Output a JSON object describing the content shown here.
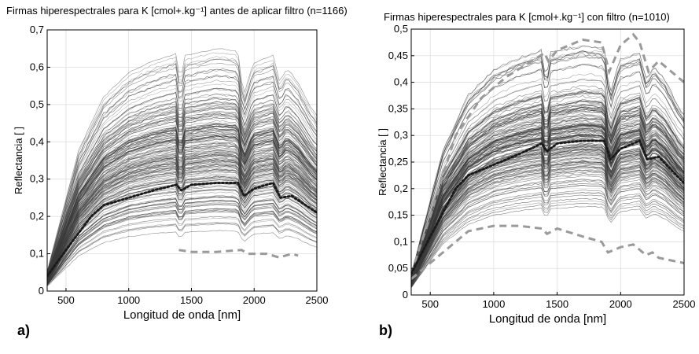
{
  "chart_data": [
    {
      "id": "a",
      "type": "line",
      "title": "Firmas hiperespectrales para K [cmol+.kg⁻¹] antes de aplicar filtro (n=1166)",
      "panel_label": "a)",
      "xlabel": "Longitud de onda [nm]",
      "ylabel": "Reflectancia [ ]",
      "xlim": [
        350,
        2500
      ],
      "ylim": [
        0,
        0.7
      ],
      "xticks": [
        500,
        1000,
        1500,
        2000,
        2500
      ],
      "yticks": [
        0,
        0.1,
        0.2,
        0.3,
        0.4,
        0.5,
        0.6,
        0.7
      ],
      "ytick_labels": [
        "0",
        "0,1",
        "0,2",
        "0,3",
        "0,4",
        "0,5",
        "0,6",
        "0,7"
      ],
      "grid": true,
      "n_spectra": 1166,
      "spectra_color": "#3a3a3a",
      "mean_color": "#1a1a1a",
      "bound_color": "#9a9a9a",
      "spectra_range": {
        "min_plateau": 0.05,
        "max_plateau": 0.66
      },
      "mean_spectrum": {
        "x": [
          350,
          500,
          700,
          800,
          1000,
          1200,
          1380,
          1420,
          1500,
          1700,
          1870,
          1920,
          2000,
          2150,
          2210,
          2300,
          2500
        ],
        "y": [
          0.04,
          0.11,
          0.2,
          0.23,
          0.25,
          0.27,
          0.285,
          0.27,
          0.285,
          0.29,
          0.29,
          0.255,
          0.275,
          0.29,
          0.25,
          0.255,
          0.21
        ]
      },
      "lower_bound": {
        "x": [
          1400,
          1500,
          1700,
          1900,
          1950,
          2100,
          2200,
          2300,
          2350
        ],
        "y": [
          0.11,
          0.105,
          0.105,
          0.11,
          0.1,
          0.1,
          0.09,
          0.1,
          0.095
        ]
      }
    },
    {
      "id": "b",
      "type": "line",
      "title": "Firmas hiperespectrales para K [cmol+.kg⁻¹] con filtro (n=1010)",
      "panel_label": "b)",
      "xlabel": "Longitud de onda [nm]",
      "ylabel": "Reflectancia [ ]",
      "xlim": [
        350,
        2500
      ],
      "ylim": [
        0,
        0.5
      ],
      "xticks": [
        500,
        1000,
        1500,
        2000,
        2500
      ],
      "yticks": [
        0,
        0.05,
        0.1,
        0.15,
        0.2,
        0.25,
        0.3,
        0.35,
        0.4,
        0.45,
        0.5
      ],
      "ytick_labels": [
        "0",
        "0,05",
        "0,1",
        "0,15",
        "0,2",
        "0,25",
        "0,3",
        "0,35",
        "0,4",
        "0,45",
        "0,5"
      ],
      "grid": true,
      "n_spectra": 1010,
      "spectra_color": "#3a3a3a",
      "mean_color": "#1a1a1a",
      "bound_color": "#9a9a9a",
      "spectra_range": {
        "min_plateau": 0.1,
        "max_plateau": 0.47
      },
      "mean_spectrum": {
        "x": [
          350,
          500,
          700,
          800,
          1000,
          1200,
          1380,
          1420,
          1500,
          1700,
          1870,
          1920,
          2000,
          2150,
          2210,
          2300,
          2500
        ],
        "y": [
          0.04,
          0.11,
          0.2,
          0.225,
          0.245,
          0.265,
          0.285,
          0.27,
          0.285,
          0.29,
          0.29,
          0.255,
          0.275,
          0.29,
          0.255,
          0.26,
          0.21
        ]
      },
      "upper_bound": {
        "x": [
          350,
          500,
          700,
          900,
          1100,
          1300,
          1400,
          1430,
          1500,
          1700,
          1850,
          1910,
          2000,
          2100,
          2150,
          2220,
          2300,
          2400,
          2500
        ],
        "y": [
          0.04,
          0.15,
          0.3,
          0.37,
          0.41,
          0.44,
          0.455,
          0.44,
          0.46,
          0.48,
          0.475,
          0.42,
          0.47,
          0.49,
          0.475,
          0.42,
          0.44,
          0.42,
          0.4
        ]
      },
      "lower_bound": {
        "x": [
          350,
          500,
          700,
          800,
          1000,
          1200,
          1380,
          1420,
          1500,
          1700,
          1850,
          1900,
          2000,
          2100,
          2150,
          2200,
          2250,
          2300,
          2400,
          2500
        ],
        "y": [
          0.03,
          0.06,
          0.1,
          0.12,
          0.13,
          0.13,
          0.125,
          0.115,
          0.125,
          0.11,
          0.1,
          0.08,
          0.09,
          0.095,
          0.085,
          0.075,
          0.08,
          0.07,
          0.065,
          0.06
        ]
      }
    }
  ]
}
